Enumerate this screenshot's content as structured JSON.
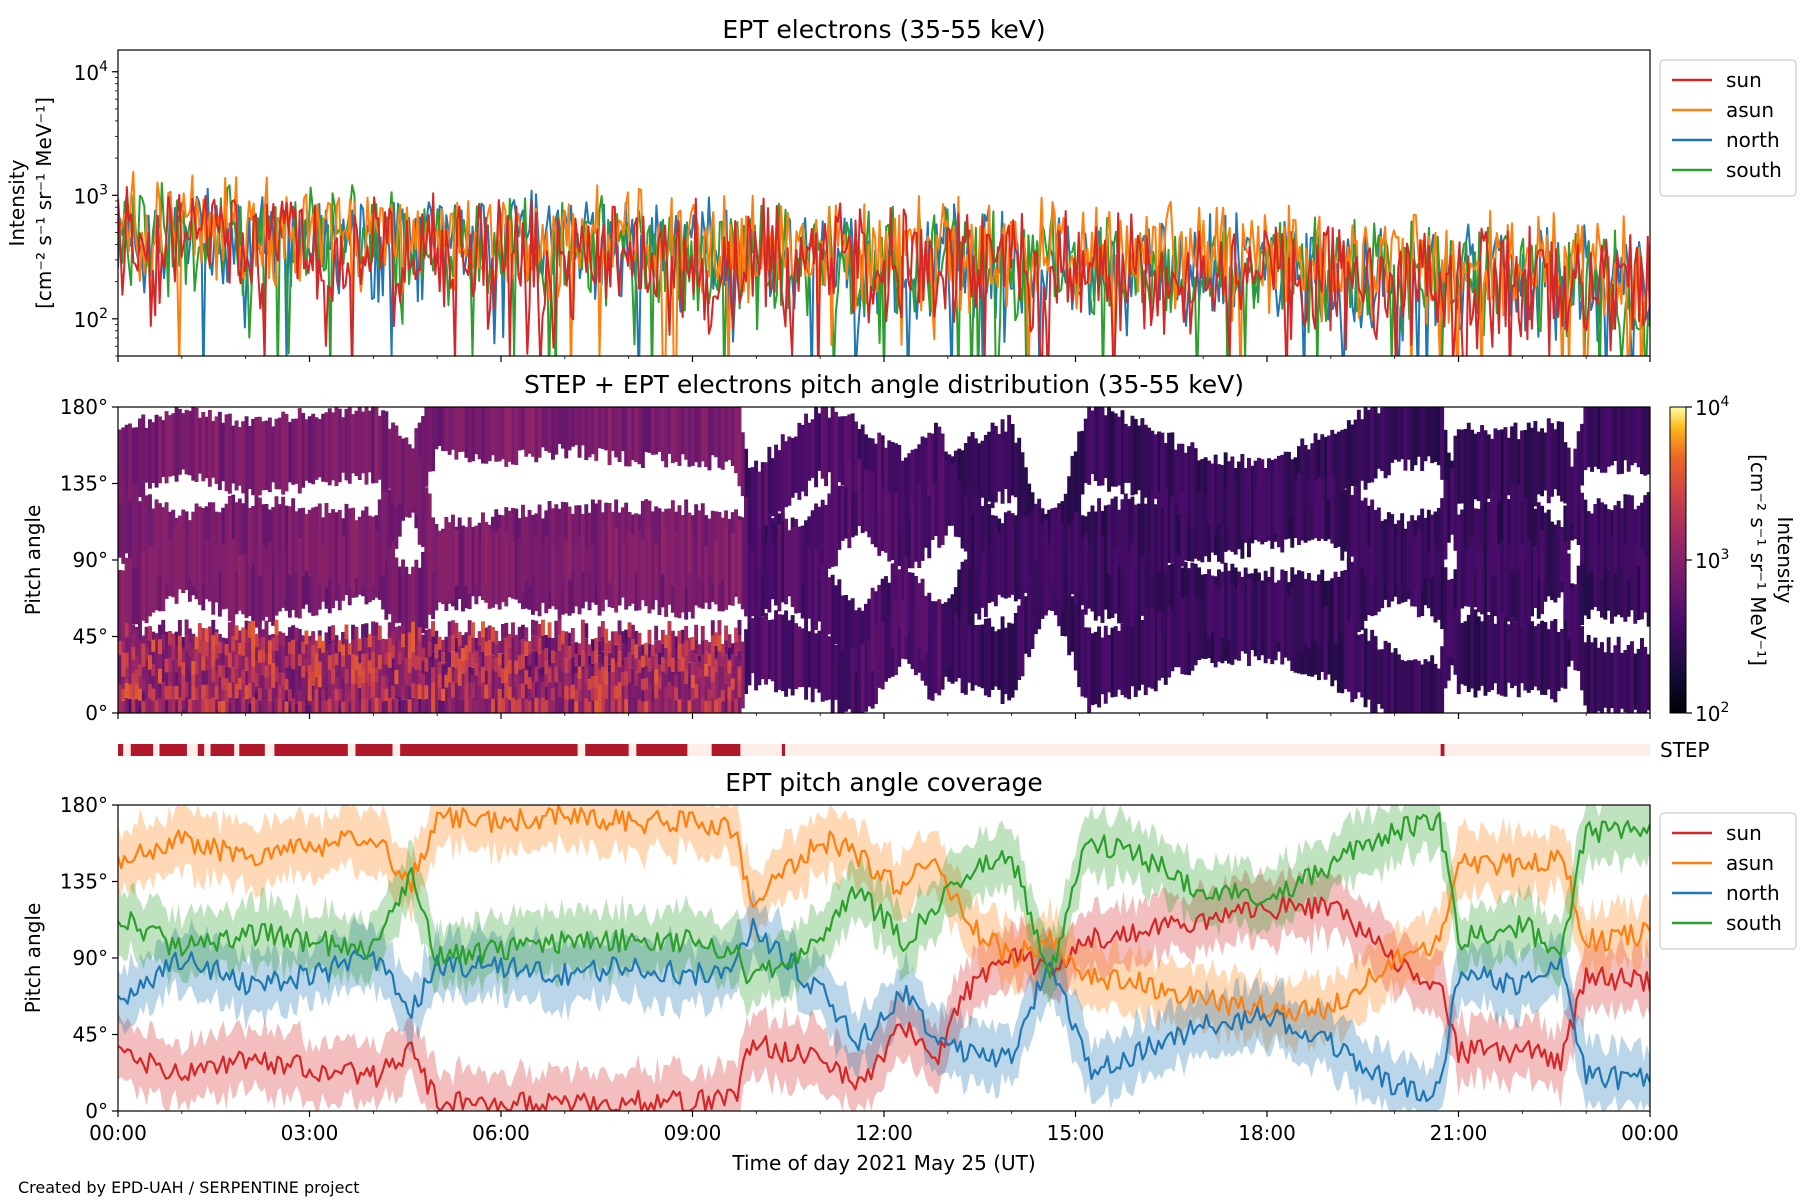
{
  "colors": {
    "sun": "#d62728",
    "asun": "#ff7f0e",
    "north": "#1f77b4",
    "south": "#2ca02c",
    "step_on": "#b2182b",
    "step_off": "#fdeee9"
  },
  "footer": {
    "credit": "Created by EPD-UAH / SERPENTINE project"
  },
  "chart_data": [
    {
      "id": "intensity",
      "type": "line",
      "title": "EPT electrons (35-55 keV)",
      "ylabel_line1": "Intensity",
      "ylabel_line2": "[cm⁻² s⁻¹ sr⁻¹ MeV⁻¹]",
      "yscale": "log",
      "ylim": [
        50,
        15000
      ],
      "yticks": [
        {
          "value": 100,
          "base": "10",
          "exp": "2"
        },
        {
          "value": 1000,
          "base": "10",
          "exp": "3"
        },
        {
          "value": 10000,
          "base": "10",
          "exp": "4"
        }
      ],
      "xlim_hours": [
        0,
        24
      ],
      "legend": "top-right outside",
      "series": [
        {
          "name": "sun",
          "color_key": "sun",
          "start": 550,
          "end": 200,
          "spread_low": 0.38,
          "spread_high": 0.55
        },
        {
          "name": "asun",
          "color_key": "asun",
          "start": 650,
          "end": 290,
          "spread_low": 0.3,
          "spread_high": 0.5
        },
        {
          "name": "north",
          "color_key": "north",
          "start": 600,
          "end": 230,
          "spread_low": 0.33,
          "spread_high": 0.5
        },
        {
          "name": "south",
          "color_key": "south",
          "start": 580,
          "end": 230,
          "spread_low": 0.33,
          "spread_high": 0.5
        }
      ]
    },
    {
      "id": "pad",
      "type": "heatmap",
      "title": "STEP + EPT electrons pitch angle distribution (35-55 keV)",
      "ylabel": "Pitch angle",
      "ylim": [
        0,
        180
      ],
      "yticks": [
        "0°",
        "45°",
        "90°",
        "135°",
        "180°"
      ],
      "colorbar": {
        "label_line1": "Intensity",
        "label_line2": "[cm⁻² s⁻¹ sr⁻¹ MeV⁻¹]",
        "scale": "log",
        "range": [
          100,
          10000
        ],
        "ticks": [
          {
            "base": "10",
            "exp": "2"
          },
          {
            "base": "10",
            "exp": "3"
          },
          {
            "base": "10",
            "exp": "4"
          }
        ]
      },
      "step_lower_band_until_hour": 9.75
    },
    {
      "id": "step",
      "type": "bar",
      "label": "STEP",
      "on_segments_hours": [
        [
          0.0,
          0.08
        ],
        [
          0.2,
          0.55
        ],
        [
          0.65,
          1.08
        ],
        [
          1.25,
          1.35
        ],
        [
          1.45,
          1.82
        ],
        [
          1.9,
          2.3
        ],
        [
          2.45,
          3.6
        ],
        [
          3.72,
          4.3
        ],
        [
          4.42,
          7.2
        ],
        [
          7.32,
          8.0
        ],
        [
          8.12,
          8.92
        ],
        [
          9.3,
          9.75
        ],
        [
          10.4,
          10.45
        ],
        [
          20.72,
          20.78
        ]
      ]
    },
    {
      "id": "coverage",
      "type": "line",
      "title": "EPT pitch angle coverage",
      "ylabel": "Pitch angle",
      "ylim": [
        0,
        180
      ],
      "yticks": [
        "0°",
        "45°",
        "90°",
        "135°",
        "180°"
      ],
      "xlabel": "Time of day 2021 May 25 (UT)",
      "xticks": [
        "00:00",
        "03:00",
        "06:00",
        "09:00",
        "12:00",
        "15:00",
        "18:00",
        "21:00",
        "00:00"
      ],
      "xlim_hours": [
        0,
        24
      ],
      "legend": "top-right outside",
      "series": [
        {
          "name": "sun",
          "color_key": "sun",
          "hours": [
            0,
            1,
            2,
            3,
            4,
            4.6,
            5.0,
            6,
            7,
            8,
            9,
            9.7,
            9.9,
            11,
            11.6,
            12.3,
            12.8,
            13.3,
            14,
            14.6,
            15.2,
            16,
            17,
            18,
            19,
            20,
            20.7,
            21,
            22,
            22.6,
            23,
            24
          ],
          "values": [
            35,
            20,
            30,
            25,
            20,
            35,
            5,
            5,
            3,
            5,
            5,
            10,
            40,
            30,
            15,
            50,
            30,
            70,
            95,
            80,
            100,
            105,
            110,
            120,
            120,
            90,
            75,
            35,
            35,
            30,
            80,
            75
          ]
        },
        {
          "name": "asun",
          "color_key": "asun",
          "hours": [
            0,
            1,
            2,
            3,
            4,
            4.6,
            5.0,
            6,
            7,
            8,
            9,
            9.7,
            9.9,
            11,
            11.6,
            12.3,
            12.8,
            13.3,
            14,
            14.6,
            15.2,
            16,
            17,
            18,
            19,
            20,
            20.7,
            21,
            22,
            22.6,
            23,
            24
          ],
          "values": [
            145,
            160,
            150,
            155,
            160,
            135,
            175,
            170,
            175,
            170,
            170,
            165,
            120,
            160,
            150,
            130,
            150,
            110,
            90,
            100,
            80,
            75,
            65,
            60,
            60,
            90,
            100,
            145,
            145,
            150,
            100,
            105
          ]
        },
        {
          "name": "north",
          "color_key": "north",
          "hours": [
            0,
            1,
            2,
            3,
            4,
            4.6,
            5.0,
            6,
            7,
            8,
            9,
            9.7,
            9.9,
            11,
            11.6,
            12.3,
            12.8,
            13.3,
            14,
            14.6,
            15.2,
            16,
            17,
            18,
            19,
            20,
            20.7,
            21,
            22,
            22.6,
            23,
            24
          ],
          "values": [
            65,
            90,
            75,
            80,
            90,
            60,
            85,
            85,
            80,
            85,
            80,
            85,
            110,
            70,
            40,
            70,
            45,
            35,
            30,
            90,
            25,
            35,
            50,
            55,
            40,
            15,
            10,
            80,
            75,
            90,
            20,
            18
          ]
        },
        {
          "name": "south",
          "color_key": "south",
          "hours": [
            0,
            1,
            2,
            3,
            4,
            4.6,
            5.0,
            6,
            7,
            8,
            9,
            9.7,
            9.9,
            11,
            11.6,
            12.3,
            12.8,
            13.3,
            14,
            14.6,
            15.2,
            16,
            17,
            18,
            19,
            20,
            20.7,
            21,
            22,
            22.6,
            23,
            24
          ],
          "values": [
            115,
            95,
            105,
            100,
            95,
            140,
            90,
            95,
            100,
            100,
            100,
            95,
            75,
            100,
            130,
            100,
            120,
            140,
            150,
            80,
            160,
            150,
            130,
            125,
            145,
            165,
            170,
            100,
            110,
            90,
            165,
            165
          ]
        }
      ]
    }
  ]
}
